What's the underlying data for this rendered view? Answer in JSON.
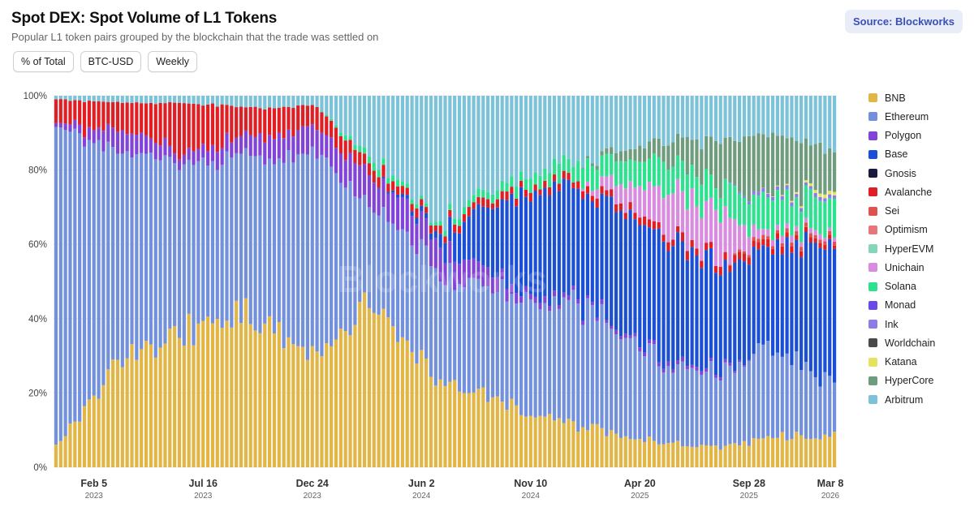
{
  "header": {
    "title": "Spot DEX: Spot Volume of L1 Tokens",
    "subtitle": "Popular L1 token pairs grouped by the blockchain that the trade was settled on",
    "source_label": "Source: Blockworks"
  },
  "toolbar": {
    "percent_label": "% of Total",
    "pair_label": "BTC-USD",
    "interval_label": "Weekly"
  },
  "watermark": "Blockworks",
  "chart_data": {
    "type": "bar",
    "stacked": true,
    "normalized": true,
    "interval": "weekly",
    "bar_count": 165,
    "ylim": [
      0,
      100
    ],
    "y_ticks": [
      "0%",
      "20%",
      "40%",
      "60%",
      "80%",
      "100%"
    ],
    "x_ticks": [
      {
        "label": "Feb 5",
        "year": "2023",
        "bar_index": 8
      },
      {
        "label": "Jul 16",
        "year": "2023",
        "bar_index": 31
      },
      {
        "label": "Dec 24",
        "year": "2023",
        "bar_index": 54
      },
      {
        "label": "Jun 2",
        "year": "2024",
        "bar_index": 77
      },
      {
        "label": "Nov 10",
        "year": "2024",
        "bar_index": 100
      },
      {
        "label": "Apr 20",
        "year": "2025",
        "bar_index": 123
      },
      {
        "label": "Sep 28",
        "year": "2025",
        "bar_index": 146
      },
      {
        "label": "Mar 8",
        "year": "2026",
        "bar_index": 169
      }
    ],
    "series_order": [
      "BNB",
      "Ethereum",
      "Polygon",
      "Base",
      "Gnosis",
      "Avalanche",
      "Sei",
      "Optimism",
      "HyperEVM",
      "Unichain",
      "Solana",
      "Monad",
      "Ink",
      "Worldchain",
      "Katana",
      "HyperCore",
      "Arbitrum"
    ],
    "series_colors": {
      "BNB": "#e2b646",
      "Ethereum": "#7290dc",
      "Polygon": "#8243d8",
      "Base": "#1b4fd6",
      "Gnosis": "#1a1a3f",
      "Avalanche": "#e01e24",
      "Sei": "#e0524f",
      "Optimism": "#e8757a",
      "HyperEVM": "#84d6b9",
      "Unichain": "#d98be0",
      "Solana": "#2de28f",
      "Monad": "#6b49e6",
      "Ink": "#8a7de8",
      "Worldchain": "#4a4a4a",
      "Katana": "#e6e25e",
      "HyperCore": "#6f9c7c",
      "Arbitrum": "#7cc3d9"
    },
    "key_points": [
      {
        "bar": 0,
        "BNB": 7,
        "Ethereum": 84,
        "Polygon": 1,
        "Avalanche": 7,
        "Arbitrum": 1
      },
      {
        "bar": 16,
        "BNB": 31,
        "Ethereum": 54,
        "Polygon": 6,
        "Avalanche": 7,
        "Arbitrum": 2
      },
      {
        "bar": 26,
        "BNB": 36,
        "Ethereum": 45,
        "Polygon": 3,
        "Avalanche": 14,
        "Arbitrum": 2
      },
      {
        "bar": 40,
        "BNB": 42,
        "Ethereum": 42,
        "Polygon": 5,
        "Avalanche": 8,
        "Arbitrum": 3
      },
      {
        "bar": 55,
        "BNB": 30,
        "Ethereum": 54,
        "Polygon": 7,
        "Avalanche": 6,
        "Arbitrum": 3
      },
      {
        "bar": 66,
        "BNB": 45,
        "Ethereum": 27,
        "Polygon": 8,
        "Avalanche": 3,
        "Solana": 2,
        "Arbitrum": 15
      },
      {
        "bar": 80,
        "BNB": 24,
        "Ethereum": 29,
        "Polygon": 8,
        "Base": 2,
        "Avalanche": 2,
        "Solana": 1,
        "Arbitrum": 34
      },
      {
        "bar": 98,
        "BNB": 15,
        "Ethereum": 30,
        "Polygon": 2,
        "Base": 27,
        "Avalanche": 2,
        "Solana": 3,
        "Arbitrum": 21
      },
      {
        "bar": 110,
        "BNB": 11,
        "Ethereum": 33,
        "Polygon": 1,
        "Base": 30,
        "Avalanche": 2,
        "Solana": 5,
        "Arbitrum": 18
      },
      {
        "bar": 128,
        "BNB": 7,
        "Ethereum": 22,
        "Polygon": 1,
        "Base": 33,
        "Avalanche": 2,
        "Unichain": 10,
        "Solana": 8,
        "HyperCore": 5,
        "Arbitrum": 12
      },
      {
        "bar": 140,
        "BNB": 5,
        "Ethereum": 19,
        "Polygon": 1,
        "Base": 28,
        "Avalanche": 2,
        "Unichain": 14,
        "Solana": 7,
        "HyperCore": 12,
        "Arbitrum": 12
      },
      {
        "bar": 148,
        "BNB": 8,
        "Ethereum": 25,
        "Base": 24,
        "Avalanche": 2,
        "Sei": 1,
        "Unichain": 2,
        "Solana": 10,
        "Ink": 1,
        "HyperCore": 17,
        "Arbitrum": 10
      },
      {
        "bar": 164,
        "BNB": 9,
        "Ethereum": 15,
        "Base": 37,
        "Avalanche": 1,
        "Sei": 1,
        "Unichain": 1,
        "Solana": 9,
        "Ink": 1,
        "Katana": 1,
        "HyperCore": 11,
        "Arbitrum": 14
      }
    ],
    "legend": [
      "BNB",
      "Ethereum",
      "Polygon",
      "Base",
      "Gnosis",
      "Avalanche",
      "Sei",
      "Optimism",
      "HyperEVM",
      "Unichain",
      "Solana",
      "Monad",
      "Ink",
      "Worldchain",
      "Katana",
      "HyperCore",
      "Arbitrum"
    ]
  }
}
